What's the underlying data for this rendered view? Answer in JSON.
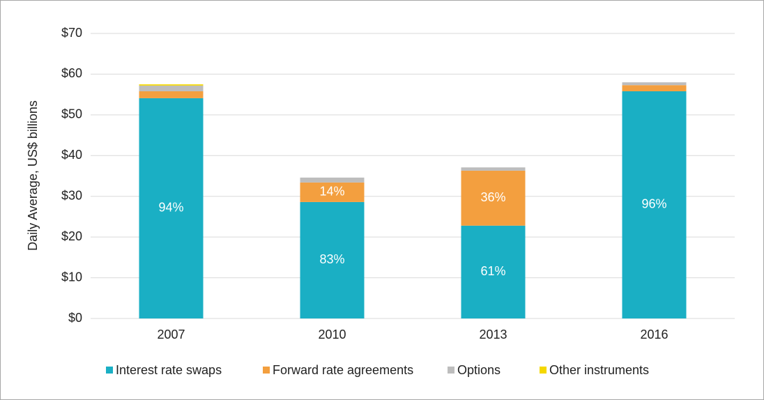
{
  "chart_data": {
    "type": "stacked_bar",
    "y_axis_label": "Daily Average, US$ billions",
    "categories": [
      "2007",
      "2010",
      "2013",
      "2016"
    ],
    "series": [
      {
        "name": "Interest rate swaps",
        "color": "#1aafc4",
        "values": [
          54.1,
          28.6,
          22.8,
          55.8
        ],
        "share_labels": [
          "94%",
          "83%",
          "61%",
          "96%"
        ]
      },
      {
        "name": "Forward rate agreements",
        "color": "#f39f3f",
        "values": [
          1.7,
          4.8,
          13.5,
          1.5
        ],
        "share_labels": [
          null,
          "14%",
          "36%",
          null
        ]
      },
      {
        "name": "Options",
        "color": "#bdbdbd",
        "values": [
          1.4,
          1.2,
          0.8,
          0.7
        ]
      },
      {
        "name": "Other instruments",
        "color": "#f5d800",
        "values": [
          0.3,
          0,
          0,
          0
        ]
      }
    ],
    "ylim": [
      0,
      70
    ],
    "yticks": [
      {
        "value": 0,
        "label": "$0"
      },
      {
        "value": 10,
        "label": "$10"
      },
      {
        "value": 20,
        "label": "$20"
      },
      {
        "value": 30,
        "label": "$30"
      },
      {
        "value": 40,
        "label": "$40"
      },
      {
        "value": 50,
        "label": "$50"
      },
      {
        "value": 60,
        "label": "$60"
      },
      {
        "value": 70,
        "label": "$70"
      }
    ],
    "grid": true,
    "legend": "bottom"
  }
}
